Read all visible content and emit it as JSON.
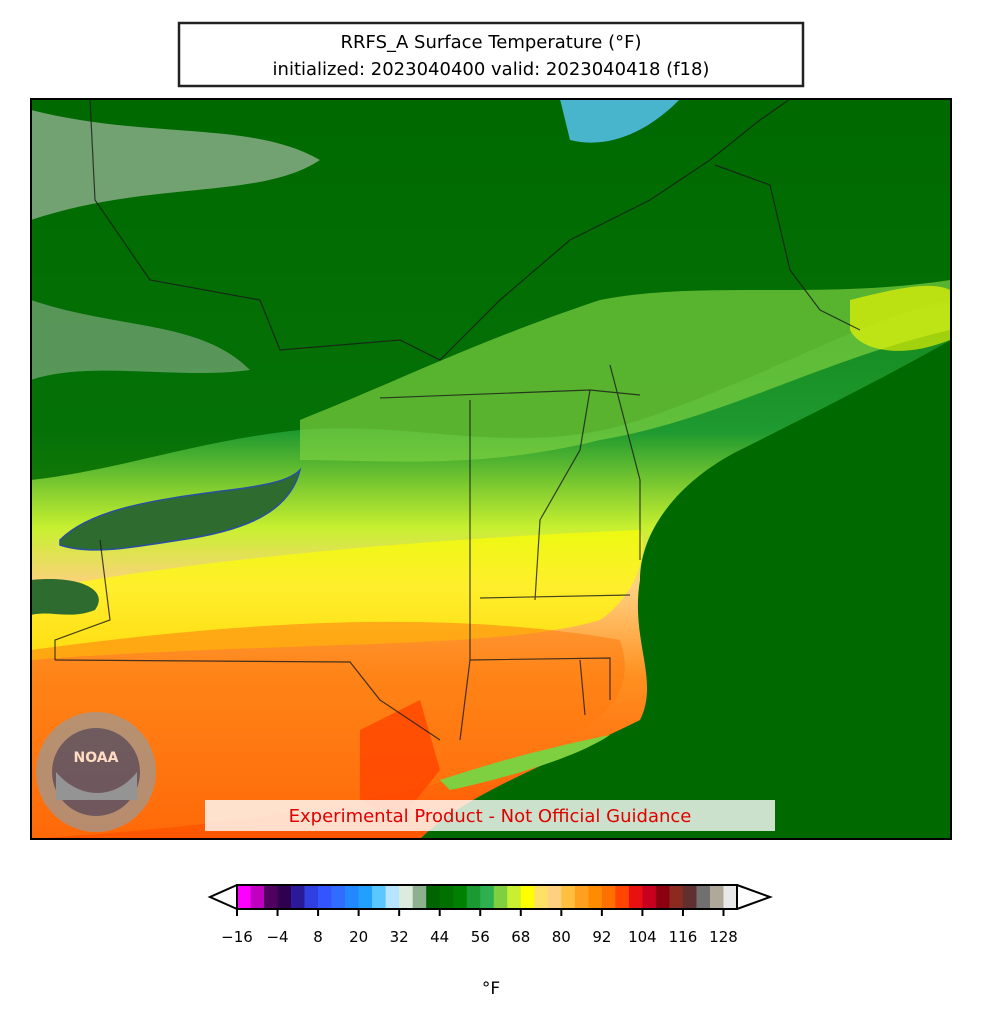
{
  "title": "RRFS_A Surface Temperature (°F)",
  "subtitle": "initialized: 2023040400 valid: 2023040418 (f18)",
  "watermark": "Experimental Product - Not Official Guidance",
  "logo_text": "NOAA",
  "colorbar": {
    "label": "°F",
    "range": [
      -16,
      132
    ],
    "ticks": [
      {
        "value": -16,
        "label": "−16"
      },
      {
        "value": -4,
        "label": "−4"
      },
      8,
      20,
      32,
      44,
      56,
      68,
      80,
      92,
      104,
      116,
      128
    ],
    "colors": [
      "#ff00ff",
      "#c000c0",
      "#500060",
      "#300050",
      "#2a1a9a",
      "#3040e0",
      "#3355ff",
      "#2f6cff",
      "#2288ff",
      "#22a0ff",
      "#5ac8ff",
      "#b8e4ff",
      "#dcecdc",
      "#8fb08f",
      "#006400",
      "#007000",
      "#008000",
      "#1a9a30",
      "#2eb050",
      "#7ed040",
      "#c8f030",
      "#ffff00",
      "#ffe066",
      "#ffd080",
      "#ffc040",
      "#ffa020",
      "#ff8c00",
      "#ff7000",
      "#ff4500",
      "#e81010",
      "#c80020",
      "#8b0010",
      "#8b2a20",
      "#603030",
      "#707070",
      "#b0a898",
      "#e8e8e8"
    ]
  }
}
